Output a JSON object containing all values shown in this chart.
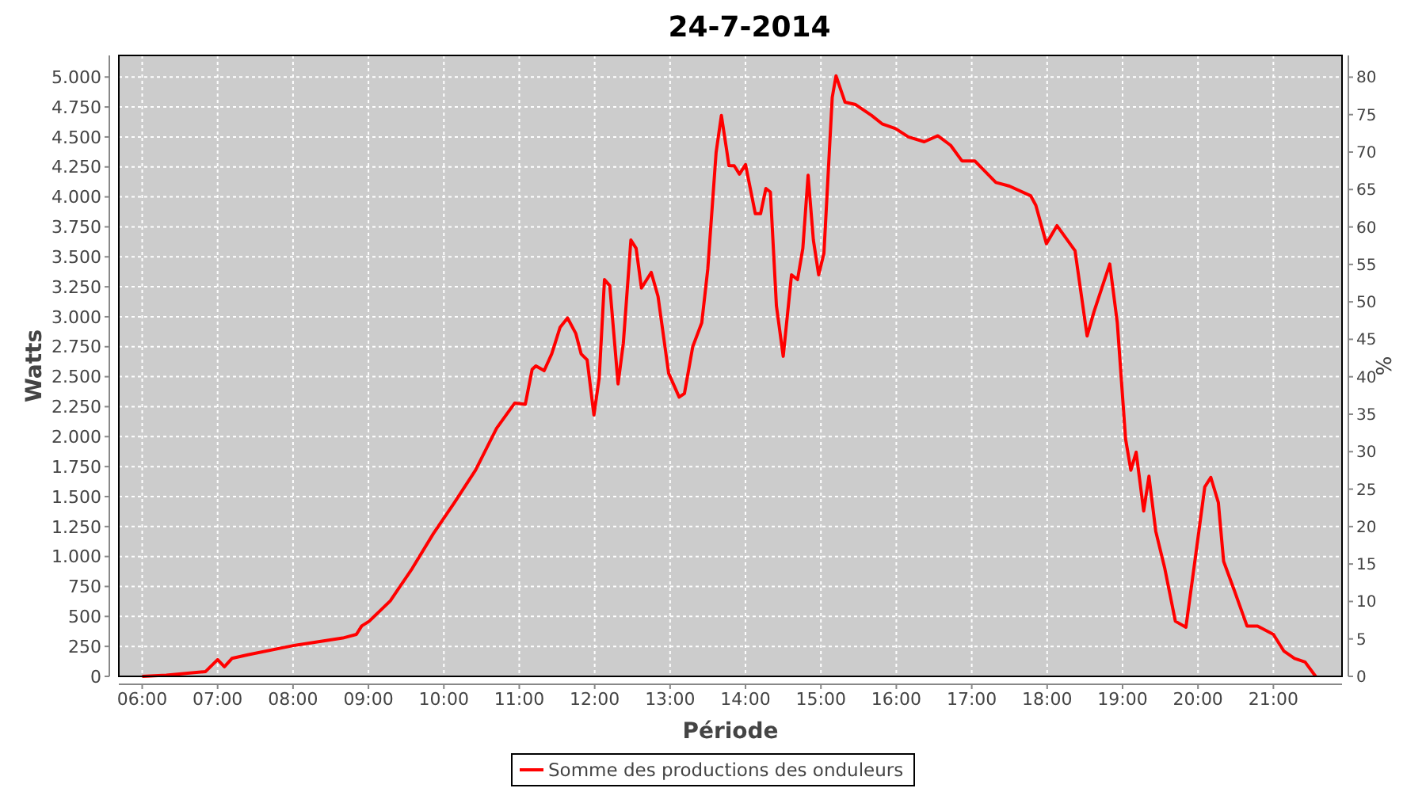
{
  "chart_data": {
    "type": "line",
    "title": "24-7-2014",
    "xlabel": "Période",
    "ylabel": "Watts",
    "y2label": "%",
    "x": [
      6.0,
      6.32,
      6.84,
      7.0,
      7.09,
      7.19,
      7.4,
      8.03,
      8.66,
      8.84,
      8.91,
      9.01,
      9.29,
      9.58,
      9.86,
      10.14,
      10.42,
      10.7,
      10.94,
      11.08,
      11.17,
      11.22,
      11.33,
      11.43,
      11.54,
      11.64,
      11.75,
      11.82,
      11.9,
      11.99,
      12.06,
      12.13,
      12.2,
      12.31,
      12.38,
      12.48,
      12.55,
      12.62,
      12.75,
      12.84,
      12.98,
      13.12,
      13.19,
      13.3,
      13.42,
      13.5,
      13.61,
      13.68,
      13.75,
      13.78,
      13.85,
      13.92,
      14.0,
      14.13,
      14.2,
      14.27,
      14.33,
      14.41,
      14.5,
      14.61,
      14.69,
      14.76,
      14.83,
      14.9,
      14.97,
      15.04,
      15.15,
      15.2,
      15.32,
      15.46,
      15.67,
      15.81,
      15.99,
      16.16,
      16.37,
      16.55,
      16.72,
      16.87,
      17.04,
      17.32,
      17.5,
      17.78,
      17.85,
      17.99,
      18.13,
      18.37,
      18.53,
      18.62,
      18.83,
      18.93,
      19.04,
      19.11,
      19.18,
      19.28,
      19.35,
      19.44,
      19.56,
      19.7,
      19.84,
      19.95,
      20.09,
      20.17,
      20.27,
      20.34,
      20.48,
      20.65,
      20.79,
      21.0,
      21.14,
      21.28,
      21.42,
      21.56
    ],
    "series": [
      {
        "name": "Somme des productions des onduleurs",
        "color": "#ff0000",
        "values": [
          0,
          10,
          40,
          140,
          80,
          150,
          180,
          260,
          320,
          350,
          420,
          460,
          630,
          900,
          1190,
          1450,
          1720,
          2070,
          2280,
          2270,
          2560,
          2590,
          2550,
          2690,
          2910,
          2990,
          2860,
          2690,
          2640,
          2180,
          2490,
          3310,
          3260,
          2440,
          2780,
          3640,
          3570,
          3240,
          3370,
          3170,
          2530,
          2330,
          2360,
          2750,
          2950,
          3400,
          4370,
          4680,
          4390,
          4260,
          4260,
          4190,
          4270,
          3860,
          3860,
          4070,
          4040,
          3090,
          2670,
          3350,
          3310,
          3570,
          4180,
          3640,
          3350,
          3530,
          4830,
          5010,
          4790,
          4770,
          4680,
          4610,
          4570,
          4500,
          4460,
          4510,
          4430,
          4300,
          4300,
          4120,
          4090,
          4010,
          3930,
          3610,
          3760,
          3550,
          2840,
          3040,
          3440,
          2950,
          1980,
          1720,
          1870,
          1380,
          1670,
          1210,
          900,
          460,
          410,
          920,
          1580,
          1660,
          1450,
          960,
          720,
          420,
          420,
          350,
          210,
          150,
          120,
          0
        ]
      }
    ],
    "xlim": [
      5.69,
      21.91
    ],
    "ylim": [
      0,
      5180
    ],
    "y2lim": [
      0,
      82.9
    ],
    "xticks": [
      {
        "value": 6,
        "label": "06:00"
      },
      {
        "value": 7,
        "label": "07:00"
      },
      {
        "value": 8,
        "label": "08:00"
      },
      {
        "value": 9,
        "label": "09:00"
      },
      {
        "value": 10,
        "label": "10:00"
      },
      {
        "value": 11,
        "label": "11:00"
      },
      {
        "value": 12,
        "label": "12:00"
      },
      {
        "value": 13,
        "label": "13:00"
      },
      {
        "value": 14,
        "label": "14:00"
      },
      {
        "value": 15,
        "label": "15:00"
      },
      {
        "value": 16,
        "label": "16:00"
      },
      {
        "value": 17,
        "label": "17:00"
      },
      {
        "value": 18,
        "label": "18:00"
      },
      {
        "value": 19,
        "label": "19:00"
      },
      {
        "value": 20,
        "label": "20:00"
      },
      {
        "value": 21,
        "label": "21:00"
      }
    ],
    "yticks": [
      0,
      250,
      500,
      750,
      {
        "value": 1000,
        "label": "1.000"
      },
      {
        "value": 1250,
        "label": "1.250"
      },
      {
        "value": 1500,
        "label": "1.500"
      },
      {
        "value": 1750,
        "label": "1.750"
      },
      {
        "value": 2000,
        "label": "2.000"
      },
      {
        "value": 2250,
        "label": "2.250"
      },
      {
        "value": 2500,
        "label": "2.500"
      },
      {
        "value": 2750,
        "label": "2.750"
      },
      {
        "value": 3000,
        "label": "3.000"
      },
      {
        "value": 3250,
        "label": "3.250"
      },
      {
        "value": 3500,
        "label": "3.500"
      },
      {
        "value": 3750,
        "label": "3.750"
      },
      {
        "value": 4000,
        "label": "4.000"
      },
      {
        "value": 4250,
        "label": "4.250"
      },
      {
        "value": 4500,
        "label": "4.500"
      },
      {
        "value": 4750,
        "label": "4.750"
      },
      {
        "value": 5000,
        "label": "5.000"
      }
    ],
    "y2ticks": [
      0,
      5,
      10,
      15,
      20,
      25,
      30,
      35,
      40,
      45,
      50,
      55,
      60,
      65,
      70,
      75,
      80
    ],
    "grid": true,
    "legend": "bottom",
    "marker": "none",
    "line_style": "solid"
  }
}
